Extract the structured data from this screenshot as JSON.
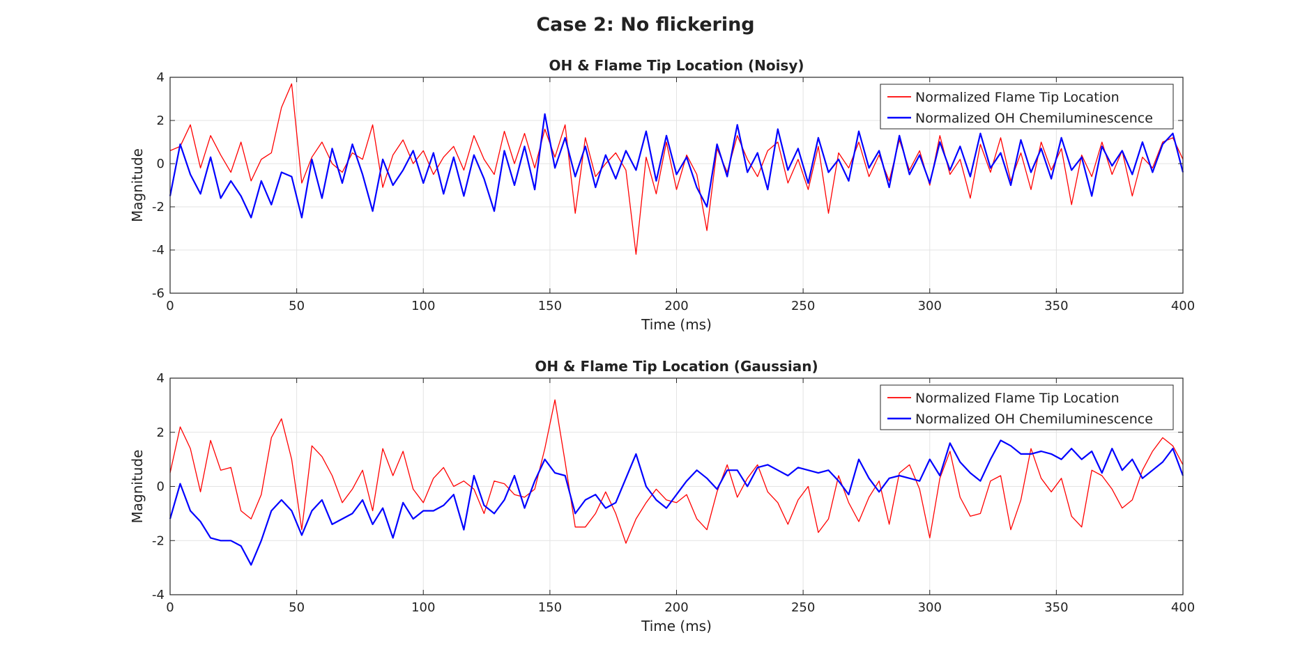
{
  "figure_title": "Case 2: No flickering",
  "colors": {
    "flame": "#ff0000",
    "oh": "#0000ff",
    "grid": "#e3e3e3",
    "axis": "#262626"
  },
  "chart_data": [
    {
      "type": "line",
      "title": "OH & Flame Tip Location (Noisy)",
      "xlabel": "Time (ms)",
      "ylabel": "Magnitude",
      "xlim": [
        0,
        400
      ],
      "ylim": [
        -6,
        4
      ],
      "xticks": [
        0,
        50,
        100,
        150,
        200,
        250,
        300,
        350,
        400
      ],
      "yticks": [
        -6,
        -4,
        -2,
        0,
        2,
        4
      ],
      "grid": true,
      "legend_position": "top-right",
      "x": [
        0,
        4,
        8,
        12,
        16,
        20,
        24,
        28,
        32,
        36,
        40,
        44,
        48,
        52,
        56,
        60,
        64,
        68,
        72,
        76,
        80,
        84,
        88,
        92,
        96,
        100,
        104,
        108,
        112,
        116,
        120,
        124,
        128,
        132,
        136,
        140,
        144,
        148,
        152,
        156,
        160,
        164,
        168,
        172,
        176,
        180,
        184,
        188,
        192,
        196,
        200,
        204,
        208,
        212,
        216,
        220,
        224,
        228,
        232,
        236,
        240,
        244,
        248,
        252,
        256,
        260,
        264,
        268,
        272,
        276,
        280,
        284,
        288,
        292,
        296,
        300,
        304,
        308,
        312,
        316,
        320,
        324,
        328,
        332,
        336,
        340,
        344,
        348,
        352,
        356,
        360,
        364,
        368,
        372,
        376,
        380,
        384,
        388,
        392,
        396,
        400
      ],
      "series": [
        {
          "name": "Normalized Flame Tip Location",
          "values": [
            0.6,
            0.8,
            1.8,
            -0.2,
            1.3,
            0.4,
            -0.4,
            1.0,
            -0.8,
            0.2,
            0.5,
            2.6,
            3.7,
            -0.9,
            0.3,
            1.0,
            0.0,
            -0.4,
            0.5,
            0.2,
            1.8,
            -1.1,
            0.4,
            1.1,
            0.0,
            0.6,
            -0.5,
            0.3,
            0.8,
            -0.3,
            1.3,
            0.2,
            -0.5,
            1.5,
            0.0,
            1.4,
            -0.2,
            1.6,
            0.3,
            1.8,
            -2.3,
            1.2,
            -0.6,
            0.0,
            0.5,
            -0.3,
            -4.2,
            0.3,
            -1.4,
            1.0,
            -1.2,
            0.4,
            -0.5,
            -3.1,
            0.7,
            -0.4,
            1.3,
            0.2,
            -0.6,
            0.6,
            1.0,
            -0.9,
            0.2,
            -1.2,
            0.8,
            -2.3,
            0.5,
            -0.2,
            1.0,
            -0.6,
            0.4,
            -0.8,
            1.1,
            -0.3,
            0.6,
            -1.0,
            1.3,
            -0.5,
            0.2,
            -1.6,
            0.9,
            -0.4,
            1.2,
            -0.8,
            0.5,
            -1.2,
            1.0,
            -0.3,
            0.7,
            -1.9,
            0.4,
            -0.6,
            1.0,
            -0.5,
            0.6,
            -1.5,
            0.3,
            -0.2,
            1.0,
            1.2,
            0.2
          ]
        },
        {
          "name": "Normalized OH Chemiluminescence",
          "values": [
            -1.5,
            0.9,
            -0.5,
            -1.4,
            0.3,
            -1.6,
            -0.8,
            -1.5,
            -2.5,
            -0.8,
            -1.9,
            -0.4,
            -0.6,
            -2.5,
            0.2,
            -1.6,
            0.7,
            -0.9,
            0.9,
            -0.5,
            -2.2,
            0.2,
            -1.0,
            -0.3,
            0.6,
            -0.9,
            0.5,
            -1.4,
            0.3,
            -1.5,
            0.4,
            -0.7,
            -2.2,
            0.6,
            -1.0,
            0.8,
            -1.2,
            2.3,
            -0.2,
            1.2,
            -0.6,
            0.8,
            -1.1,
            0.4,
            -0.7,
            0.6,
            -0.3,
            1.5,
            -0.8,
            1.3,
            -0.5,
            0.3,
            -1.1,
            -2.0,
            0.9,
            -0.6,
            1.8,
            -0.4,
            0.5,
            -1.2,
            1.6,
            -0.3,
            0.7,
            -0.9,
            1.2,
            -0.4,
            0.2,
            -0.8,
            1.5,
            -0.2,
            0.6,
            -1.1,
            1.3,
            -0.5,
            0.4,
            -0.9,
            1.0,
            -0.3,
            0.8,
            -0.6,
            1.4,
            -0.2,
            0.5,
            -1.0,
            1.1,
            -0.4,
            0.7,
            -0.7,
            1.2,
            -0.3,
            0.3,
            -1.5,
            0.8,
            -0.1,
            0.6,
            -0.5,
            1.0,
            -0.4,
            0.9,
            1.4,
            -0.4
          ]
        }
      ]
    },
    {
      "type": "line",
      "title": "OH & Flame Tip Location (Gaussian)",
      "xlabel": "Time (ms)",
      "ylabel": "Magnitude",
      "xlim": [
        0,
        400
      ],
      "ylim": [
        -4,
        4
      ],
      "xticks": [
        0,
        50,
        100,
        150,
        200,
        250,
        300,
        350,
        400
      ],
      "yticks": [
        -4,
        -2,
        0,
        2,
        4
      ],
      "grid": true,
      "legend_position": "top-right",
      "x": [
        0,
        4,
        8,
        12,
        16,
        20,
        24,
        28,
        32,
        36,
        40,
        44,
        48,
        52,
        56,
        60,
        64,
        68,
        72,
        76,
        80,
        84,
        88,
        92,
        96,
        100,
        104,
        108,
        112,
        116,
        120,
        124,
        128,
        132,
        136,
        140,
        144,
        148,
        152,
        156,
        160,
        164,
        168,
        172,
        176,
        180,
        184,
        188,
        192,
        196,
        200,
        204,
        208,
        212,
        216,
        220,
        224,
        228,
        232,
        236,
        240,
        244,
        248,
        252,
        256,
        260,
        264,
        268,
        272,
        276,
        280,
        284,
        288,
        292,
        296,
        300,
        304,
        308,
        312,
        316,
        320,
        324,
        328,
        332,
        336,
        340,
        344,
        348,
        352,
        356,
        360,
        364,
        368,
        372,
        376,
        380,
        384,
        388,
        392,
        396,
        400
      ],
      "series": [
        {
          "name": "Normalized Flame Tip Location",
          "values": [
            0.5,
            2.2,
            1.4,
            -0.2,
            1.7,
            0.6,
            0.7,
            -0.9,
            -1.2,
            -0.3,
            1.8,
            2.5,
            1.0,
            -1.6,
            1.5,
            1.1,
            0.4,
            -0.6,
            -0.1,
            0.6,
            -0.9,
            1.4,
            0.4,
            1.3,
            -0.1,
            -0.6,
            0.3,
            0.7,
            0.0,
            0.2,
            -0.1,
            -1.0,
            0.2,
            0.1,
            -0.3,
            -0.4,
            -0.1,
            1.4,
            3.2,
            0.9,
            -1.5,
            -1.5,
            -1.0,
            -0.2,
            -1.0,
            -2.1,
            -1.2,
            -0.6,
            -0.1,
            -0.5,
            -0.6,
            -0.3,
            -1.2,
            -1.6,
            -0.2,
            0.8,
            -0.4,
            0.3,
            0.8,
            -0.2,
            -0.6,
            -1.4,
            -0.5,
            0.0,
            -1.7,
            -1.2,
            0.4,
            -0.6,
            -1.3,
            -0.4,
            0.2,
            -1.4,
            0.5,
            0.8,
            -0.1,
            -1.9,
            0.3,
            1.3,
            -0.4,
            -1.1,
            -1.0,
            0.2,
            0.4,
            -1.6,
            -0.5,
            1.4,
            0.3,
            -0.2,
            0.3,
            -1.1,
            -1.5,
            0.6,
            0.4,
            -0.1,
            -0.8,
            -0.5,
            0.6,
            1.3,
            1.8,
            1.5,
            0.8
          ]
        },
        {
          "name": "Normalized OH Chemiluminescence",
          "values": [
            -1.2,
            0.1,
            -0.9,
            -1.3,
            -1.9,
            -2.0,
            -2.0,
            -2.2,
            -2.9,
            -2.0,
            -0.9,
            -0.5,
            -0.9,
            -1.8,
            -0.9,
            -0.5,
            -1.4,
            -1.2,
            -1.0,
            -0.5,
            -1.4,
            -0.8,
            -1.9,
            -0.6,
            -1.2,
            -0.9,
            -0.9,
            -0.7,
            -0.3,
            -1.6,
            0.4,
            -0.7,
            -1.0,
            -0.5,
            0.4,
            -0.8,
            0.2,
            1.0,
            0.5,
            0.4,
            -1.0,
            -0.5,
            -0.3,
            -0.8,
            -0.6,
            0.3,
            1.2,
            0.0,
            -0.5,
            -0.8,
            -0.3,
            0.2,
            0.6,
            0.3,
            -0.1,
            0.6,
            0.6,
            0.0,
            0.7,
            0.8,
            0.6,
            0.4,
            0.7,
            0.6,
            0.5,
            0.6,
            0.2,
            -0.3,
            1.0,
            0.3,
            -0.2,
            0.3,
            0.4,
            0.3,
            0.2,
            1.0,
            0.4,
            1.6,
            0.9,
            0.5,
            0.2,
            1.0,
            1.7,
            1.5,
            1.2,
            1.2,
            1.3,
            1.2,
            1.0,
            1.4,
            1.0,
            1.3,
            0.5,
            1.4,
            0.6,
            1.0,
            0.3,
            0.6,
            0.9,
            1.4,
            0.4
          ]
        }
      ]
    }
  ]
}
